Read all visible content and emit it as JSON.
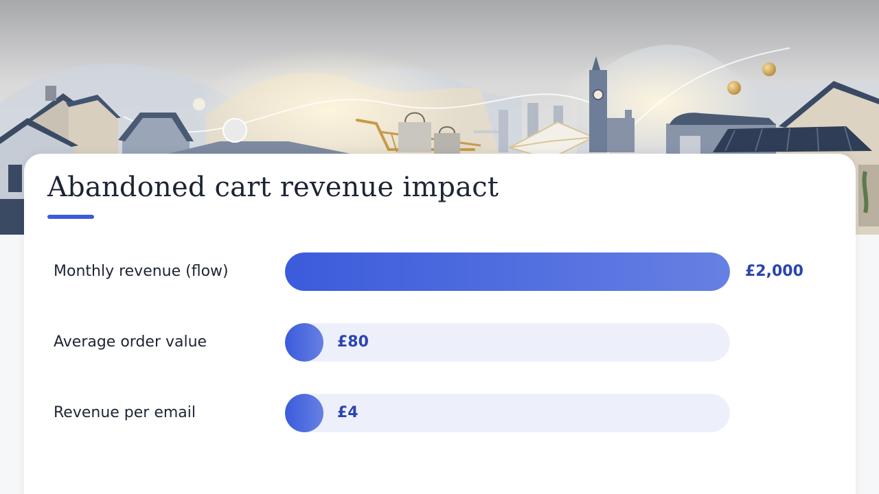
{
  "chart_data": {
    "type": "bar",
    "orientation": "horizontal",
    "title": "Abandoned cart revenue impact",
    "categories": [
      "Monthly revenue (flow)",
      "Average order value",
      "Revenue per email"
    ],
    "values": [
      2000,
      80,
      4
    ],
    "value_labels": [
      "£2,000",
      "£80",
      "£4"
    ],
    "currency": "£",
    "xlim": [
      0,
      2000
    ],
    "grid": false,
    "legend": "none"
  },
  "colors": {
    "accent": "#3b5bdb",
    "accent_light": "#6680e3",
    "track": "#edf0fb",
    "value_text": "#2a44b0",
    "title_text": "#1d2433"
  },
  "banner": {
    "icons": [
      "house-icon",
      "big-ben-icon",
      "shopping-cart-icon",
      "shopping-bag-icon",
      "envelope-icon",
      "shop-awning-icon",
      "gold-coin-icon"
    ]
  }
}
